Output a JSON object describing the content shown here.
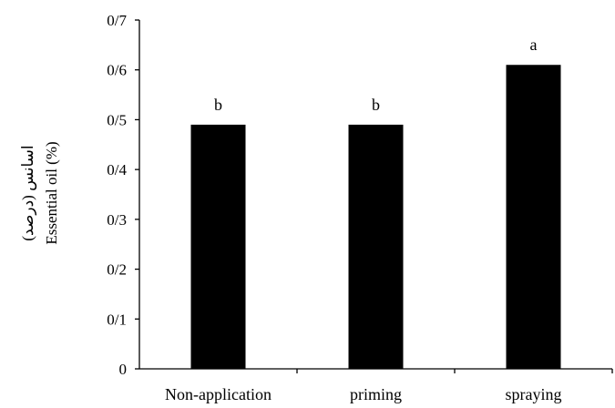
{
  "chart_data": {
    "type": "bar",
    "categories": [
      "Non-application",
      "priming",
      "spraying"
    ],
    "values": [
      0.49,
      0.49,
      0.61
    ],
    "significance_letters": [
      "b",
      "b",
      "a"
    ],
    "ylabel_en": "Essential oil (%)",
    "ylabel_fa": "اسانس (درصد)",
    "xlabel": "",
    "title": "",
    "ylim": [
      0,
      0.7
    ],
    "yticks": [
      0,
      0.1,
      0.2,
      0.3,
      0.4,
      0.5,
      0.6,
      0.7
    ],
    "ytick_labels": [
      "0",
      "0/1",
      "0/2",
      "0/3",
      "0/4",
      "0/5",
      "0/6",
      "0/7"
    ],
    "grid": false,
    "bar_color": "#000000"
  }
}
